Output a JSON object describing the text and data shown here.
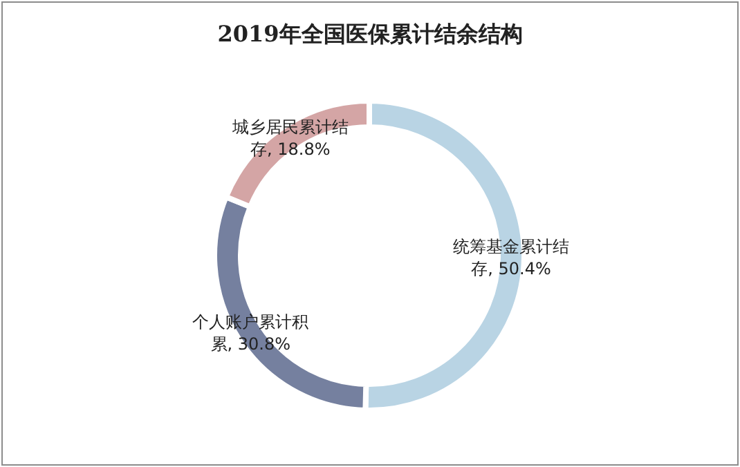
{
  "chart_data": {
    "type": "donut",
    "title": "2019年全国医保累计结余结构",
    "categories": [
      "统筹基金累计结存",
      "个人账户累计积累",
      "城乡居民累计结存"
    ],
    "values": [
      50.4,
      30.8,
      18.8
    ],
    "value_labels": [
      "50.4%",
      "30.8%",
      "18.8%"
    ],
    "colors": [
      "#b9d4e4",
      "#75809f",
      "#d4a5a5"
    ]
  }
}
